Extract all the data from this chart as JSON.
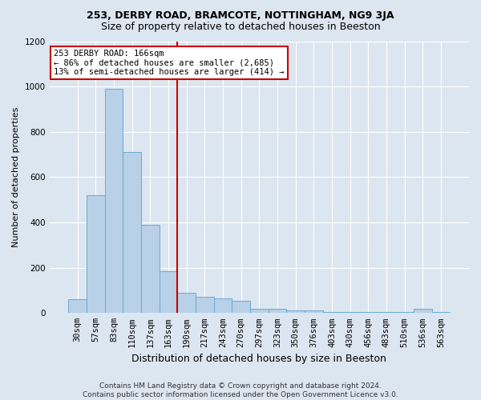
{
  "title1": "253, DERBY ROAD, BRAMCOTE, NOTTINGHAM, NG9 3JA",
  "title2": "Size of property relative to detached houses in Beeston",
  "xlabel": "Distribution of detached houses by size in Beeston",
  "ylabel": "Number of detached properties",
  "footer1": "Contains HM Land Registry data © Crown copyright and database right 2024.",
  "footer2": "Contains public sector information licensed under the Open Government Licence v3.0.",
  "bin_labels": [
    "30sqm",
    "57sqm",
    "83sqm",
    "110sqm",
    "137sqm",
    "163sqm",
    "190sqm",
    "217sqm",
    "243sqm",
    "270sqm",
    "297sqm",
    "323sqm",
    "350sqm",
    "376sqm",
    "403sqm",
    "430sqm",
    "456sqm",
    "483sqm",
    "510sqm",
    "536sqm",
    "563sqm"
  ],
  "bar_values": [
    60,
    520,
    990,
    710,
    390,
    185,
    90,
    70,
    65,
    55,
    20,
    20,
    10,
    10,
    5,
    3,
    3,
    3,
    3,
    18,
    3
  ],
  "bar_color": "#b8d0e8",
  "bar_edge_color": "#6aaad4",
  "property_line_x": 5.5,
  "annotation_text1": "253 DERBY ROAD: 166sqm",
  "annotation_text2": "← 86% of detached houses are smaller (2,685)",
  "annotation_text3": "13% of semi-detached houses are larger (414) →",
  "vline_color": "#cc0000",
  "annotation_box_color": "#ffffff",
  "annotation_box_edge": "#cc0000",
  "ylim": [
    0,
    1200
  ],
  "yticks": [
    0,
    200,
    400,
    600,
    800,
    1000,
    1200
  ],
  "bg_color": "#dce6f0",
  "plot_bg_color": "#dce6f0",
  "grid_color": "#ffffff",
  "title1_fontsize": 9,
  "title2_fontsize": 9,
  "xlabel_fontsize": 9,
  "ylabel_fontsize": 8,
  "tick_fontsize": 7.5,
  "annotation_fontsize": 7.5,
  "footer_fontsize": 6.5
}
